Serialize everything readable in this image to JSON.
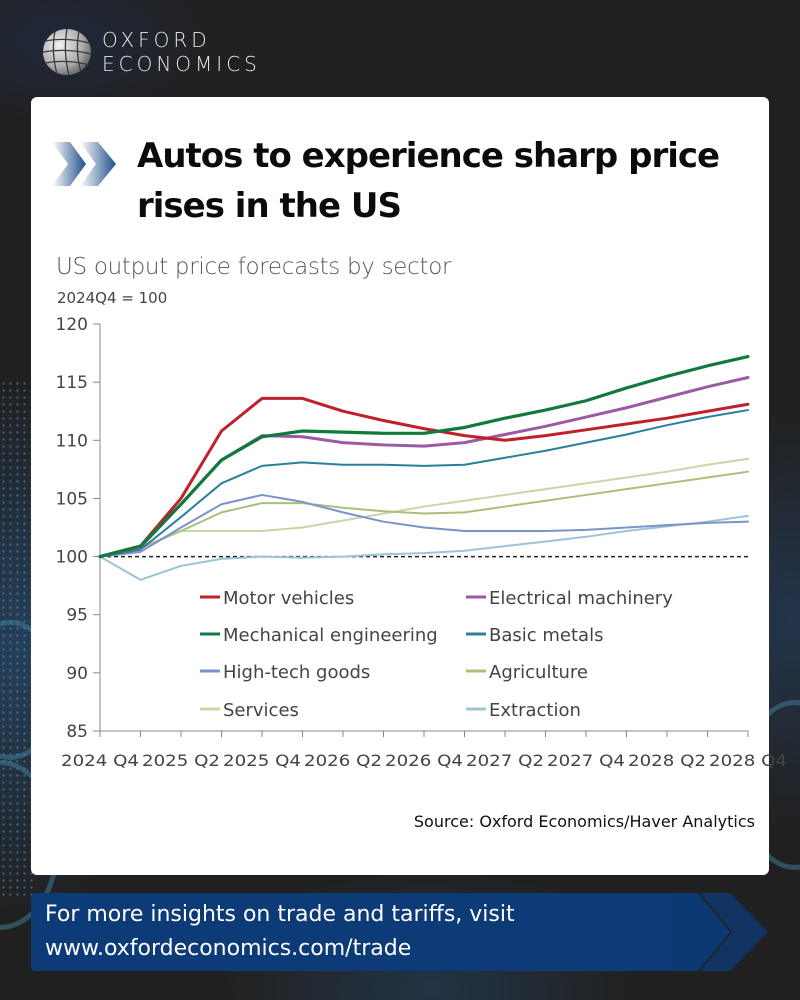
{
  "brand": {
    "line1": "OXFORD",
    "line2": "ECONOMICS",
    "logo_icon": "globe-icon"
  },
  "headline": "Autos to experience sharp price rises in the US",
  "headline_icon": "double-chevron-icon",
  "colors": {
    "banner": "#0d3b78",
    "accent_chevron": "#1f4e8c"
  },
  "chart_data": {
    "type": "line",
    "title": "US output price forecasts by sector",
    "subtitle": "2024Q4 = 100",
    "xlabel": "",
    "ylabel": "",
    "ylim": [
      85,
      120
    ],
    "yticks": [
      85,
      90,
      95,
      100,
      105,
      110,
      115,
      120
    ],
    "x": [
      "2024 Q4",
      "2025 Q1",
      "2025 Q2",
      "2025 Q3",
      "2025 Q4",
      "2026 Q1",
      "2026 Q2",
      "2026 Q3",
      "2026 Q4",
      "2027 Q1",
      "2027 Q2",
      "2027 Q3",
      "2027 Q4",
      "2028 Q1",
      "2028 Q2",
      "2028 Q3",
      "2028 Q4"
    ],
    "xtick_labels": [
      "2024 Q4",
      "2025 Q2",
      "2025 Q4",
      "2026 Q2",
      "2026 Q4",
      "2027 Q2",
      "2027 Q4",
      "2028 Q2",
      "2028 Q4"
    ],
    "reference_line": {
      "value": 100,
      "style": "dashed"
    },
    "grid": false,
    "legend_placement": "inside-bottom",
    "series": [
      {
        "name": "Motor vehicles",
        "color": "#c0202a",
        "values": [
          100,
          100.9,
          105.0,
          110.8,
          113.6,
          113.6,
          112.5,
          111.7,
          111.0,
          110.4,
          110.0,
          110.4,
          110.9,
          111.4,
          111.9,
          112.5,
          113.1
        ]
      },
      {
        "name": "Electrical machinery",
        "color": "#9b59a6",
        "values": [
          100,
          100.8,
          104.5,
          108.3,
          110.4,
          110.3,
          109.8,
          109.6,
          109.5,
          109.8,
          110.5,
          111.2,
          112.0,
          112.8,
          113.7,
          114.6,
          115.4
        ]
      },
      {
        "name": "Mechanical engineering",
        "color": "#0f7a3c",
        "values": [
          100,
          100.9,
          104.5,
          108.3,
          110.3,
          110.8,
          110.7,
          110.6,
          110.6,
          111.1,
          111.9,
          112.6,
          113.4,
          114.5,
          115.5,
          116.4,
          117.2
        ]
      },
      {
        "name": "Basic metals",
        "color": "#2a7f9a",
        "values": [
          100,
          100.6,
          103.4,
          106.3,
          107.8,
          108.1,
          107.9,
          107.9,
          107.8,
          107.9,
          108.5,
          109.1,
          109.8,
          110.5,
          111.3,
          112.0,
          112.6
        ]
      },
      {
        "name": "High-tech goods",
        "color": "#7b93c9",
        "values": [
          100,
          100.4,
          102.5,
          104.5,
          105.3,
          104.7,
          103.8,
          103.0,
          102.5,
          102.2,
          102.2,
          102.2,
          102.3,
          102.5,
          102.7,
          102.9,
          103.0
        ]
      },
      {
        "name": "Agriculture",
        "color": "#a9c07a",
        "values": [
          100,
          100.7,
          102.2,
          103.8,
          104.6,
          104.6,
          104.2,
          103.9,
          103.7,
          103.8,
          104.3,
          104.8,
          105.3,
          105.8,
          106.3,
          106.8,
          107.3
        ]
      },
      {
        "name": "Services",
        "color": "#c9d6a6",
        "values": [
          100,
          100.8,
          102.2,
          102.2,
          102.2,
          102.5,
          103.1,
          103.7,
          104.3,
          104.8,
          105.3,
          105.8,
          106.3,
          106.8,
          107.3,
          107.9,
          108.4
        ]
      },
      {
        "name": "Extraction",
        "color": "#9cc3d6",
        "values": [
          100,
          98.0,
          99.2,
          99.8,
          100.0,
          99.9,
          100.0,
          100.2,
          100.3,
          100.5,
          100.9,
          101.3,
          101.7,
          102.2,
          102.6,
          103.0,
          103.5
        ]
      }
    ]
  },
  "source": "Source: Oxford Economics/Haver Analytics",
  "banner": {
    "line1": "For more insights on trade and tariffs, visit",
    "line2": "www.oxfordeconomics.com/trade"
  }
}
